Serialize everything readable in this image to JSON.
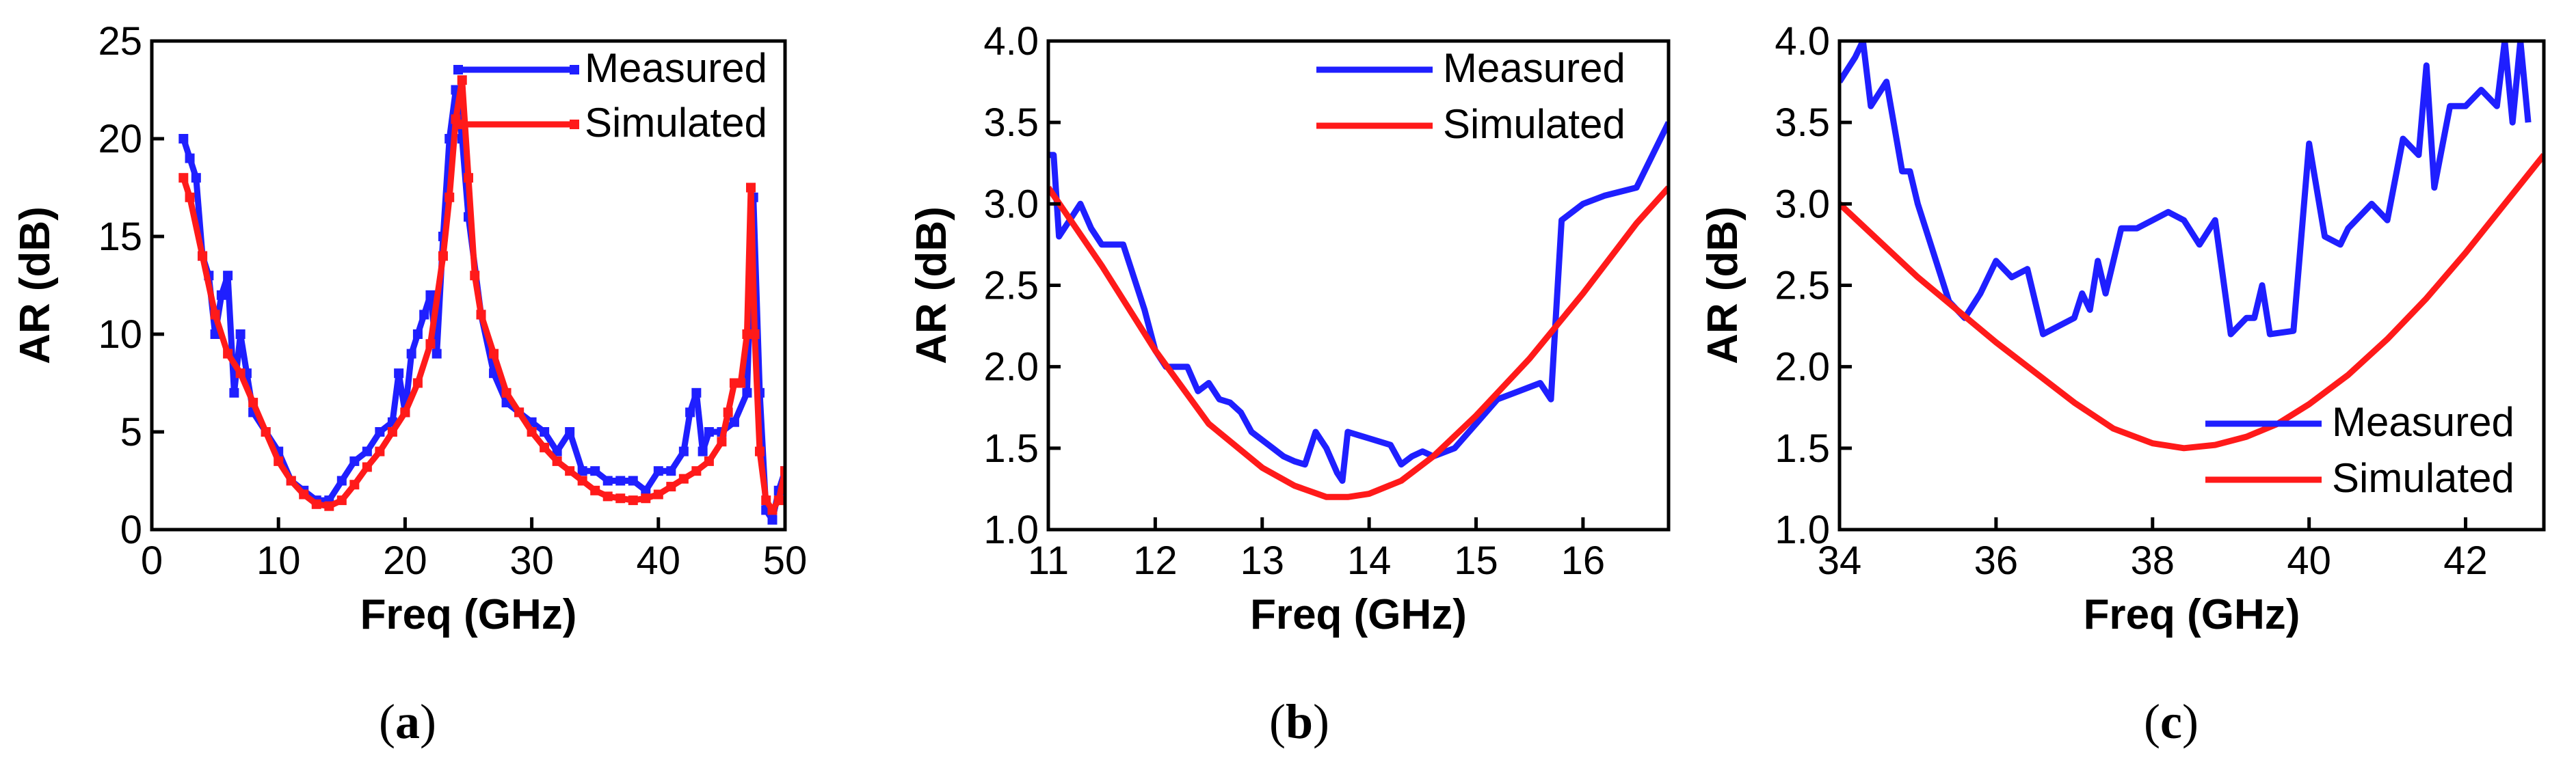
{
  "figure": {
    "panels": [
      {
        "caption_open": "(",
        "caption_letter": "a",
        "caption_close": ")"
      },
      {
        "caption_open": "(",
        "caption_letter": "b",
        "caption_close": ")"
      },
      {
        "caption_open": "(",
        "caption_letter": "c",
        "caption_close": ")"
      }
    ]
  },
  "chart_data": [
    {
      "id": "a",
      "type": "line",
      "xlabel": "Freq (GHz)",
      "ylabel": "AR (dB)",
      "xlim": [
        0,
        50
      ],
      "ylim": [
        0,
        25
      ],
      "xticks": [
        "0",
        "10",
        "20",
        "30",
        "40",
        "50"
      ],
      "yticks": [
        "0",
        "5",
        "10",
        "15",
        "20",
        "25"
      ],
      "legend_position": "top-right",
      "series": [
        {
          "name": "Measured",
          "color": "#1f1fff",
          "marker": "square",
          "x": [
            2.5,
            3,
            3.5,
            4,
            4.5,
            5,
            5.5,
            6,
            6.5,
            7,
            7.5,
            8,
            9,
            10,
            11,
            12,
            13,
            14,
            15,
            16,
            17,
            18,
            19,
            19.5,
            20,
            20.5,
            21,
            21.5,
            22,
            22.5,
            23,
            23.5,
            24,
            24.5,
            25,
            26,
            27,
            28,
            29,
            30,
            31,
            32,
            33,
            34,
            35,
            36,
            37,
            38,
            39,
            40,
            41,
            42,
            42.5,
            43,
            43.5,
            44,
            45,
            46,
            47,
            47.5,
            48,
            48.5,
            49,
            49.5,
            50
          ],
          "y": [
            20,
            19,
            18,
            14,
            13,
            10,
            12,
            13,
            7,
            10,
            8,
            6,
            5,
            4,
            2.5,
            2,
            1.5,
            1.5,
            2.5,
            3.5,
            4,
            5,
            5.5,
            8,
            6,
            9,
            10,
            11,
            12,
            9,
            15,
            20,
            22.5,
            20,
            16,
            11,
            8,
            6.5,
            6,
            5.5,
            5,
            4,
            5,
            3,
            3,
            2.5,
            2.5,
            2.5,
            2,
            3,
            3,
            4,
            6,
            7,
            4,
            5,
            5,
            5.5,
            7,
            17,
            7,
            1,
            0.5,
            2,
            3
          ]
        },
        {
          "name": "Simulated",
          "color": "#ff1a1a",
          "marker": "square",
          "x": [
            2.5,
            3,
            4,
            5,
            6,
            7,
            8,
            9,
            10,
            11,
            12,
            13,
            14,
            15,
            16,
            17,
            18,
            19,
            20,
            21,
            22,
            23,
            23.5,
            24,
            24.5,
            25,
            25.5,
            26,
            27,
            28,
            29,
            30,
            31,
            32,
            33,
            34,
            35,
            36,
            37,
            38,
            39,
            40,
            41,
            42,
            43,
            44,
            45,
            45.5,
            46,
            46.5,
            47,
            47.3,
            47.6,
            48,
            48.5,
            49,
            49.5,
            50
          ],
          "y": [
            18,
            17,
            14,
            11,
            9,
            8,
            6.5,
            5,
            3.5,
            2.5,
            1.8,
            1.3,
            1.2,
            1.5,
            2.3,
            3.2,
            4,
            5,
            6,
            7.5,
            9.5,
            14,
            17,
            21,
            23,
            18,
            13,
            11,
            9,
            7,
            6,
            5,
            4.2,
            3.5,
            3,
            2.5,
            2,
            1.7,
            1.6,
            1.5,
            1.6,
            1.8,
            2.2,
            2.6,
            3,
            3.5,
            4.5,
            6,
            7.5,
            7.5,
            10,
            17.5,
            10,
            4,
            1.5,
            1,
            1.5,
            3
          ]
        }
      ]
    },
    {
      "id": "b",
      "type": "line",
      "xlabel": "Freq (GHz)",
      "ylabel": "AR (dB)",
      "xlim": [
        11,
        16.8
      ],
      "ylim": [
        1.0,
        4.0
      ],
      "xticks": [
        "11",
        "12",
        "13",
        "14",
        "15",
        "16"
      ],
      "yticks": [
        "1.0",
        "1.5",
        "2.0",
        "2.5",
        "3.0",
        "3.5",
        "4.0"
      ],
      "legend_position": "top-right",
      "series": [
        {
          "name": "Measured",
          "color": "#1f1fff",
          "x": [
            11,
            11.05,
            11.1,
            11.2,
            11.3,
            11.4,
            11.5,
            11.6,
            11.7,
            11.8,
            11.9,
            12.0,
            12.1,
            12.2,
            12.3,
            12.4,
            12.5,
            12.6,
            12.7,
            12.8,
            12.9,
            13.0,
            13.1,
            13.2,
            13.3,
            13.4,
            13.5,
            13.6,
            13.7,
            13.75,
            13.8,
            13.9,
            14.0,
            14.2,
            14.3,
            14.4,
            14.5,
            14.6,
            14.8,
            15.0,
            15.2,
            15.4,
            15.6,
            15.7,
            15.8,
            16.0,
            16.2,
            16.5,
            16.8
          ],
          "y": [
            3.3,
            3.3,
            2.8,
            2.9,
            3.0,
            2.85,
            2.75,
            2.75,
            2.75,
            2.55,
            2.35,
            2.1,
            2.0,
            2.0,
            2.0,
            1.85,
            1.9,
            1.8,
            1.78,
            1.72,
            1.6,
            1.55,
            1.5,
            1.45,
            1.42,
            1.4,
            1.6,
            1.5,
            1.35,
            1.3,
            1.6,
            1.58,
            1.56,
            1.52,
            1.4,
            1.45,
            1.48,
            1.45,
            1.5,
            1.65,
            1.8,
            1.85,
            1.9,
            1.8,
            2.9,
            3.0,
            3.05,
            3.1,
            3.5
          ]
        },
        {
          "name": "Simulated",
          "color": "#ff1a1a",
          "x": [
            11.0,
            11.5,
            12.0,
            12.5,
            13.0,
            13.3,
            13.6,
            13.8,
            14.0,
            14.3,
            14.6,
            15.0,
            15.5,
            16.0,
            16.5,
            16.8
          ],
          "y": [
            3.1,
            2.62,
            2.1,
            1.65,
            1.38,
            1.27,
            1.2,
            1.2,
            1.22,
            1.3,
            1.45,
            1.7,
            2.05,
            2.45,
            2.88,
            3.1
          ]
        }
      ]
    },
    {
      "id": "c",
      "type": "line",
      "xlabel": "Freq (GHz)",
      "ylabel": "AR (dB)",
      "xlim": [
        34,
        43
      ],
      "ylim": [
        1.0,
        4.0
      ],
      "xticks": [
        "34",
        "36",
        "38",
        "40",
        "42"
      ],
      "yticks": [
        "1.0",
        "1.5",
        "2.0",
        "2.5",
        "3.0",
        "3.5",
        "4.0"
      ],
      "legend_position": "bottom-right",
      "series": [
        {
          "name": "Measured",
          "color": "#1f1fff",
          "x": [
            34.0,
            34.2,
            34.3,
            34.4,
            34.6,
            34.8,
            34.9,
            35.0,
            35.2,
            35.4,
            35.6,
            35.8,
            36.0,
            36.2,
            36.4,
            36.6,
            36.8,
            37.0,
            37.1,
            37.2,
            37.3,
            37.4,
            37.6,
            37.8,
            38.0,
            38.2,
            38.4,
            38.6,
            38.8,
            39.0,
            39.2,
            39.3,
            39.4,
            39.5,
            39.8,
            40.0,
            40.2,
            40.4,
            40.5,
            40.8,
            41.0,
            41.2,
            41.4,
            41.5,
            41.6,
            41.8,
            42.0,
            42.2,
            42.4,
            42.5,
            42.6,
            42.7,
            42.8
          ],
          "y": [
            3.75,
            3.9,
            4.0,
            3.6,
            3.75,
            3.2,
            3.2,
            3.0,
            2.7,
            2.4,
            2.3,
            2.45,
            2.65,
            2.55,
            2.6,
            2.2,
            2.25,
            2.3,
            2.45,
            2.35,
            2.65,
            2.45,
            2.85,
            2.85,
            2.9,
            2.95,
            2.9,
            2.75,
            2.9,
            2.2,
            2.3,
            2.3,
            2.5,
            2.2,
            2.22,
            3.37,
            2.8,
            2.75,
            2.85,
            3.0,
            2.9,
            3.4,
            3.3,
            3.85,
            3.1,
            3.6,
            3.6,
            3.7,
            3.6,
            4.0,
            3.5,
            4.0,
            3.5
          ]
        },
        {
          "name": "Simulated",
          "color": "#ff1a1a",
          "x": [
            34.0,
            35.0,
            36.0,
            37.0,
            37.5,
            38.0,
            38.4,
            38.8,
            39.2,
            39.6,
            40.0,
            40.5,
            41.0,
            41.5,
            42.0,
            42.5,
            43.0
          ],
          "y": [
            3.0,
            2.55,
            2.15,
            1.78,
            1.62,
            1.53,
            1.5,
            1.52,
            1.57,
            1.65,
            1.77,
            1.95,
            2.17,
            2.42,
            2.7,
            3.0,
            3.3
          ]
        }
      ]
    }
  ]
}
